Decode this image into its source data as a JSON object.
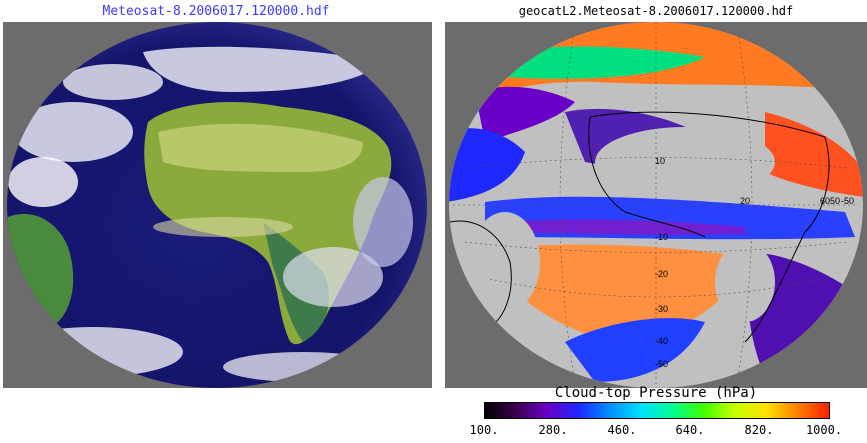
{
  "left_panel": {
    "title": "Meteosat-8.2006017.120000.hdf",
    "title_color": "#3a3aff",
    "background": "#6c6c6c"
  },
  "right_panel": {
    "title": "geocatL2.Meteosat-8.2006017.120000.hdf",
    "background": "#6c6c6c",
    "grid_labels": [
      "10",
      "-10",
      "-20",
      "-30",
      "-40",
      "-50",
      "20",
      "60",
      "50",
      "-50"
    ]
  },
  "colorbar": {
    "title": "Cloud-top Pressure (hPa)",
    "ticks": [
      "100.",
      "280.",
      "460.",
      "640.",
      "820.",
      "1000."
    ],
    "colors": [
      "#000000",
      "#3c0050",
      "#6a00c8",
      "#1e28ff",
      "#0090ff",
      "#00e0ff",
      "#00ff90",
      "#40ff00",
      "#c8ff00",
      "#ffe000",
      "#ff8000",
      "#ff2000"
    ]
  }
}
